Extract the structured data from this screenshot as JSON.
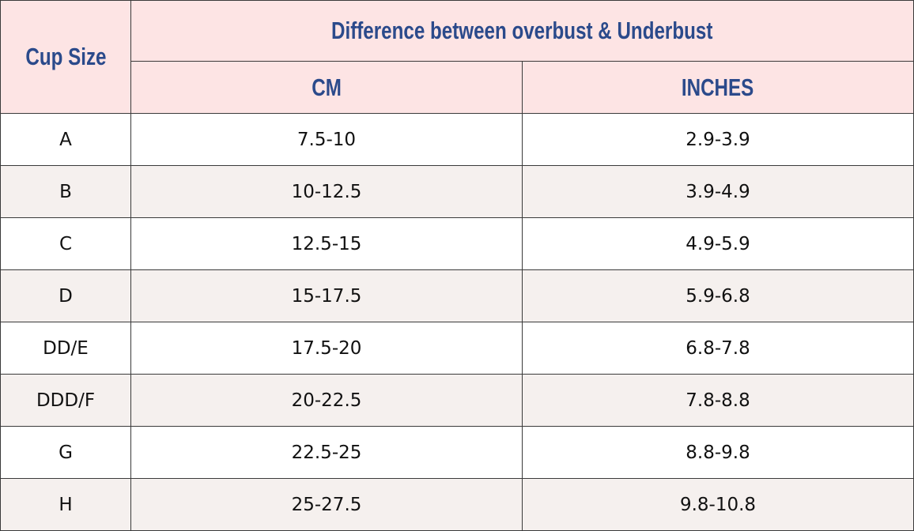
{
  "header": {
    "cup_size": "Cup Size",
    "difference": "Difference between overbust & Underbust",
    "cm": "CM",
    "inches": "INCHES"
  },
  "table": {
    "rows": [
      [
        "A",
        "7.5-10",
        "2.9-3.9"
      ],
      [
        "B",
        "10-12.5",
        "3.9-4.9"
      ],
      [
        "C",
        "12.5-15",
        "4.9-5.9"
      ],
      [
        "D",
        "15-17.5",
        "5.9-6.8"
      ],
      [
        "DD/E",
        "17.5-20",
        "6.8-7.8"
      ],
      [
        "DDD/F",
        "20-22.5",
        "7.8-8.8"
      ],
      [
        "G",
        "22.5-25",
        "8.8-9.8"
      ],
      [
        "H",
        "25-27.5",
        "9.8-10.8"
      ]
    ]
  }
}
